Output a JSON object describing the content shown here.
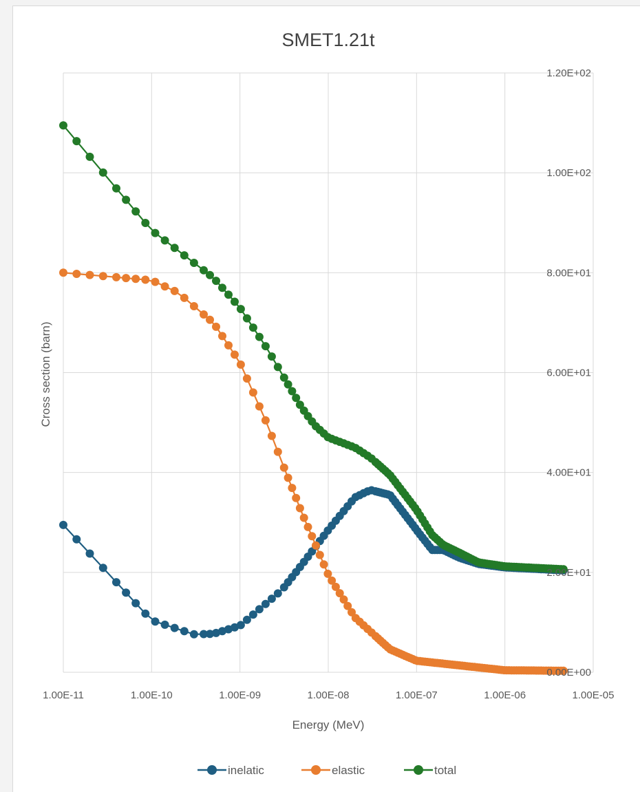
{
  "chart_data": {
    "type": "line",
    "title": "SMET1.21t",
    "xlabel": "Energy (MeV)",
    "ylabel": "Cross section (barn)",
    "x_scale": "log",
    "xlim": [
      1e-11,
      1e-05
    ],
    "ylim": [
      0,
      120
    ],
    "x_tick_values": [
      1e-11,
      1e-10,
      1e-09,
      1e-08,
      1e-07,
      1e-06,
      1e-05
    ],
    "x_tick_labels": [
      "1.00E-11",
      "1.00E-10",
      "1.00E-09",
      "1.00E-08",
      "1.00E-07",
      "1.00E-06",
      "1.00E-05"
    ],
    "y_tick_values": [
      0,
      20,
      40,
      60,
      80,
      100,
      120
    ],
    "y_tick_labels": [
      "0.00E+00",
      "2.00E+01",
      "4.00E+01",
      "6.00E+01",
      "8.00E+01",
      "1.00E+02",
      "1.20E+02"
    ],
    "y_axis_side": "right",
    "grid": true,
    "legend_position": "bottom",
    "series": [
      {
        "name": "inelatic",
        "color": "#1f5e82",
        "x": [
          1e-11,
          1e-10,
          3e-10,
          5e-10,
          1e-09,
          3e-09,
          5e-09,
          1e-08,
          2e-08,
          3e-08,
          5e-08,
          1e-07,
          1.5e-07,
          2e-07,
          3e-07,
          5e-07,
          1e-06,
          4.9e-06
        ],
        "y": [
          29.5,
          10.4,
          7.6,
          7.7,
          9.3,
          16.5,
          21.5,
          28.5,
          35.0,
          36.5,
          35.5,
          28.5,
          24.5,
          24.5,
          23.0,
          21.7,
          21.0,
          20.4
        ]
      },
      {
        "name": "elastic",
        "color": "#e87d2f",
        "x": [
          1e-11,
          1e-10,
          2e-10,
          5e-10,
          1e-09,
          2e-09,
          3e-09,
          5e-09,
          7e-09,
          1e-08,
          2e-08,
          5e-08,
          1e-07,
          1e-06,
          4.9e-06
        ],
        "y": [
          80.0,
          78.5,
          76.0,
          70.0,
          62.0,
          50.0,
          42.0,
          32.0,
          26.0,
          19.5,
          11.0,
          4.6,
          2.3,
          0.4,
          0.3
        ]
      },
      {
        "name": "total",
        "color": "#237a28",
        "x": [
          1e-11,
          1e-10,
          5e-10,
          1e-09,
          2e-09,
          5e-09,
          7e-09,
          1e-08,
          2e-08,
          3e-08,
          5e-08,
          1e-07,
          1.5e-07,
          2e-07,
          3e-07,
          5e-07,
          1e-06,
          4.9e-06
        ],
        "y": [
          109.5,
          88.5,
          79.0,
          73.0,
          65.0,
          53.0,
          49.5,
          47.0,
          45.0,
          43.0,
          39.5,
          32.5,
          27.5,
          25.5,
          24.0,
          22.0,
          21.2,
          20.6
        ]
      }
    ]
  }
}
